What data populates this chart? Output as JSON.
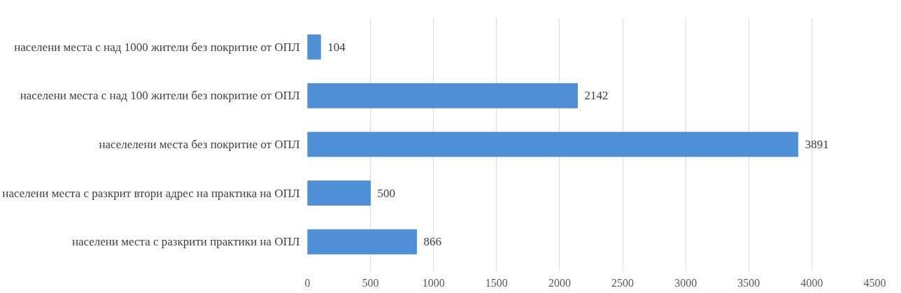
{
  "chart_data": {
    "type": "bar",
    "orientation": "horizontal",
    "categories": [
      "населени места с над 1000 жители без покритие от ОПЛ",
      "населени места с над 100 жители без покритие от ОПЛ",
      "населелени места без покритие от ОПЛ",
      "населени места с разкрит втори адрес на практика на ОПЛ",
      "населени места с разкрити практики на ОПЛ"
    ],
    "values": [
      104,
      2142,
      3891,
      500,
      866
    ],
    "color": "#4f8fd6",
    "xlim": [
      0,
      4500
    ],
    "xticks": [
      0,
      500,
      1000,
      1500,
      2000,
      2500,
      3000,
      3500,
      4000,
      4500
    ],
    "grid": "x",
    "data_labels": true
  }
}
